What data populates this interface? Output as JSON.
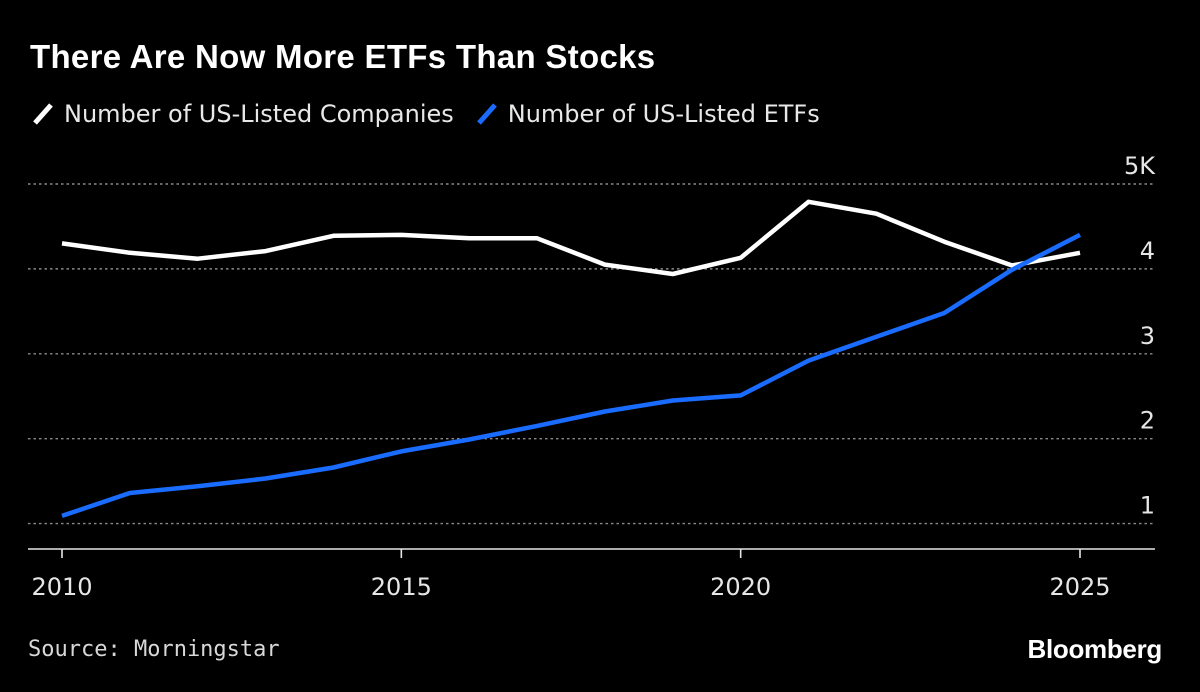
{
  "colors": {
    "background": "#000000",
    "companies": "#ffffff",
    "etfs": "#1a6cff",
    "grid": "#8a8a8a",
    "axis": "#e6e6e6"
  },
  "chart_data": {
    "type": "line",
    "title": "There Are Now More ETFs Than Stocks",
    "xlabel": "",
    "ylabel": "",
    "x": [
      2010,
      2011,
      2012,
      2013,
      2014,
      2015,
      2016,
      2017,
      2018,
      2019,
      2020,
      2021,
      2022,
      2023,
      2024,
      2025
    ],
    "series": [
      {
        "name": "Number of US-Listed Companies",
        "color": "#ffffff",
        "values": [
          4.3,
          4.19,
          4.12,
          4.21,
          4.39,
          4.4,
          4.36,
          4.36,
          4.05,
          3.94,
          4.13,
          4.79,
          4.65,
          4.32,
          4.04,
          4.19
        ]
      },
      {
        "name": "Number of US-Listed ETFs",
        "color": "#1a6cff",
        "values": [
          1.09,
          1.36,
          1.44,
          1.53,
          1.66,
          1.85,
          1.99,
          2.15,
          2.32,
          2.45,
          2.51,
          2.92,
          3.2,
          3.48,
          3.99,
          4.4
        ]
      }
    ],
    "xlim": [
      2010,
      2026.1
    ],
    "ylim": [
      0.7,
      5.0
    ],
    "x_ticks": [
      "2010",
      "2015",
      "2020",
      "2025"
    ],
    "x_tick_values": [
      2010,
      2015,
      2020,
      2025
    ],
    "y_ticks": [
      "1",
      "2",
      "3",
      "4",
      "5K"
    ],
    "y_tick_values": [
      1,
      2,
      3,
      4,
      5
    ],
    "grid": true,
    "legend_position": "top-left",
    "y_axis_side": "right"
  },
  "footer": {
    "source": "Source: Morningstar",
    "brand": "Bloomberg"
  }
}
